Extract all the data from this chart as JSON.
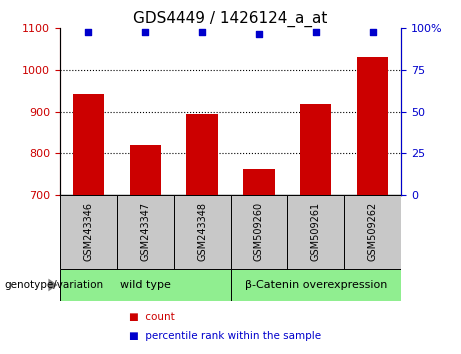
{
  "title": "GDS4449 / 1426124_a_at",
  "categories": [
    "GSM243346",
    "GSM243347",
    "GSM243348",
    "GSM509260",
    "GSM509261",
    "GSM509262"
  ],
  "bar_values": [
    942,
    820,
    893,
    762,
    918,
    1032
  ],
  "percentile_values": [
    98,
    97.5,
    97.5,
    96.5,
    97.5,
    97.5
  ],
  "bar_color": "#cc0000",
  "percentile_color": "#0000cc",
  "ylim_left": [
    700,
    1100
  ],
  "ylim_right": [
    0,
    100
  ],
  "yticks_left": [
    700,
    800,
    900,
    1000,
    1100
  ],
  "yticks_right": [
    0,
    25,
    50,
    75,
    100
  ],
  "ytick_labels_right": [
    "0",
    "25",
    "50",
    "75",
    "100%"
  ],
  "grid_values": [
    800,
    900,
    1000
  ],
  "groups": [
    {
      "label": "wild type",
      "indices": [
        0,
        1,
        2
      ],
      "color": "#90ee90"
    },
    {
      "label": "β-Catenin overexpression",
      "indices": [
        3,
        4,
        5
      ],
      "color": "#90ee90"
    }
  ],
  "group_box_color": "#c8c8c8",
  "legend_items": [
    {
      "label": "count",
      "color": "#cc0000"
    },
    {
      "label": "percentile rank within the sample",
      "color": "#0000cc"
    }
  ],
  "genotype_label": "genotype/variation",
  "background_color": "#ffffff",
  "plot_bg_color": "#ffffff",
  "title_fontsize": 11,
  "tick_fontsize": 8,
  "sample_label_fontsize": 7,
  "group_label_fontsize": 8
}
